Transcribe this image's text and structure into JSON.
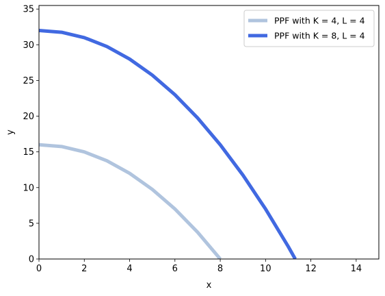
{
  "chart_data": {
    "type": "line",
    "title": "",
    "xlabel": "x",
    "ylabel": "y",
    "xlim": [
      0,
      15
    ],
    "ylim": [
      0,
      35.5
    ],
    "xticks": [
      0,
      2,
      4,
      6,
      8,
      10,
      12,
      14
    ],
    "yticks": [
      0,
      5,
      10,
      15,
      20,
      25,
      30,
      35
    ],
    "grid": false,
    "legend_position": "top-right",
    "series": [
      {
        "name": "PPF with K = 4, L = 4",
        "color": "#b0c4de",
        "x": [
          0,
          1,
          2,
          3,
          4,
          5,
          6,
          7,
          8
        ],
        "y": [
          16,
          15.75,
          15,
          13.75,
          12,
          9.75,
          7,
          3.75,
          0
        ]
      },
      {
        "name": "PPF with K = 8, L = 4",
        "color": "#4169e1",
        "x": [
          0,
          1,
          2,
          3,
          4,
          5,
          6,
          7,
          8,
          9,
          10,
          11,
          11.31
        ],
        "y": [
          32,
          31.75,
          31,
          29.75,
          28,
          25.75,
          23,
          19.75,
          16,
          11.75,
          7,
          1.75,
          0
        ]
      }
    ]
  }
}
